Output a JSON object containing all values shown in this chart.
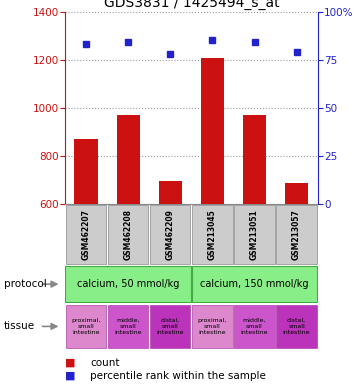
{
  "title": "GDS3831 / 1425494_s_at",
  "samples": [
    "GSM462207",
    "GSM462208",
    "GSM462209",
    "GSM213045",
    "GSM213051",
    "GSM213057"
  ],
  "counts": [
    870,
    970,
    695,
    1205,
    970,
    685
  ],
  "percentiles": [
    83,
    84,
    78,
    85,
    84,
    79
  ],
  "ylim_left": [
    600,
    1400
  ],
  "ylim_right": [
    0,
    100
  ],
  "yticks_left": [
    600,
    800,
    1000,
    1200,
    1400
  ],
  "yticks_right": [
    0,
    25,
    50,
    75,
    100
  ],
  "bar_color": "#cc1111",
  "dot_color": "#2222cc",
  "protocol_labels": [
    "calcium, 50 mmol/kg",
    "calcium, 150 mmol/kg"
  ],
  "protocol_groups": [
    3,
    3
  ],
  "protocol_color": "#88ee88",
  "tissue_labels": [
    "proximal,\nsmall\nintestine",
    "middle,\nsmall\nintestine",
    "distal,\nsmall\nintestine",
    "proximal,\nsmall\nintestine",
    "middle,\nsmall\nintestine",
    "distal,\nsmall\nintestine"
  ],
  "tissue_colors": [
    "#dd88cc",
    "#cc55cc",
    "#bb33bb",
    "#dd88cc",
    "#cc55cc",
    "#bb33bb"
  ],
  "bg_color": "#ffffff",
  "grid_color": "#999999",
  "title_fontsize": 10,
  "tick_fontsize": 7.5,
  "label_fontsize": 8
}
